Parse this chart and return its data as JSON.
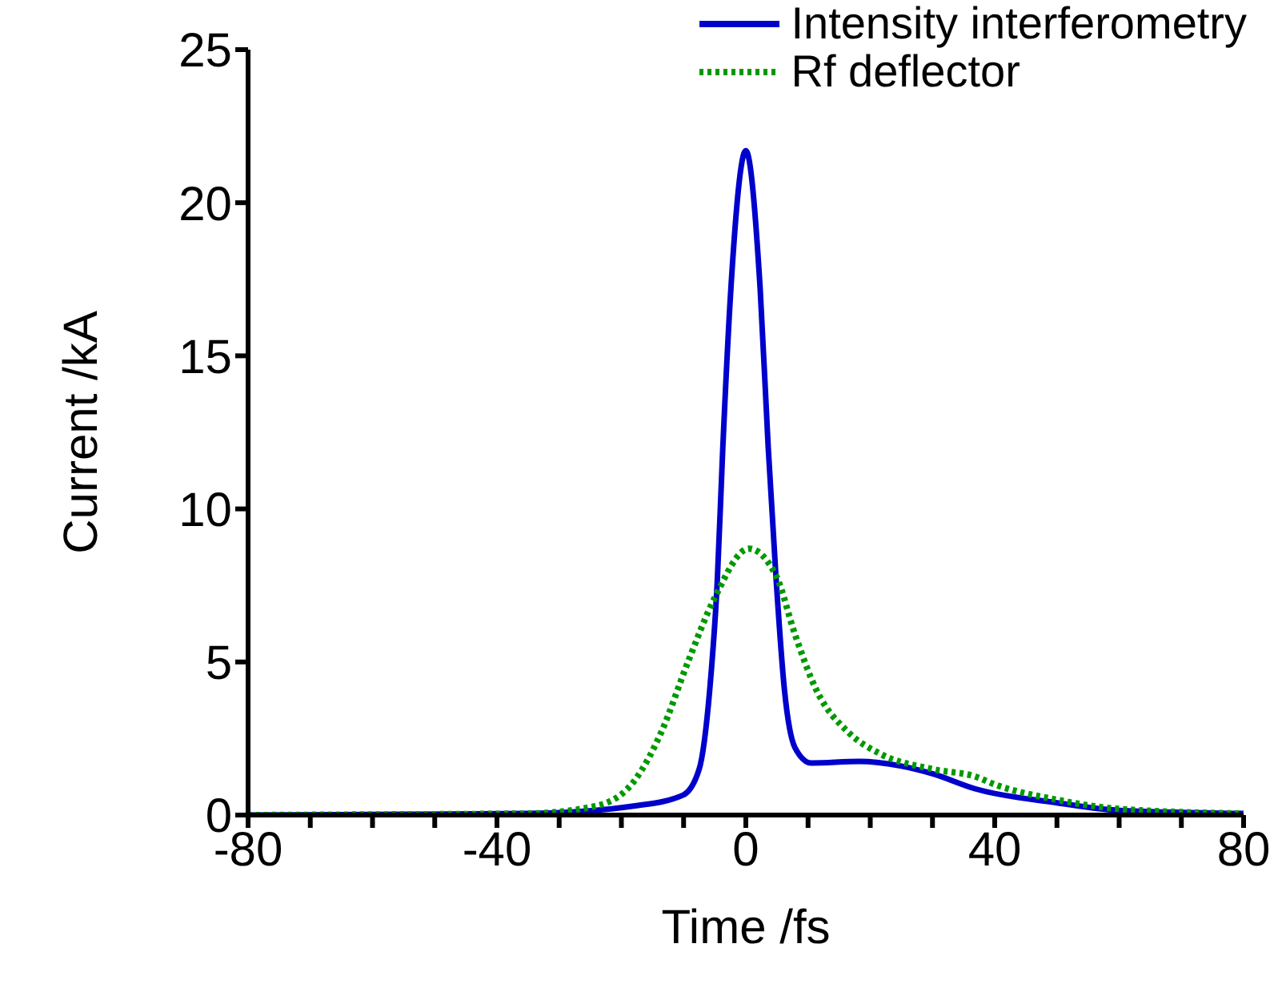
{
  "chart_data": {
    "type": "line",
    "xlabel": "Time /fs",
    "ylabel": "Current /kA",
    "xlim": [
      -80,
      80
    ],
    "ylim": [
      0,
      25
    ],
    "xticks": [
      -80,
      {
        "value": -70,
        "label": null
      },
      {
        "value": -60,
        "label": null
      },
      {
        "value": -50,
        "label": null
      },
      -40,
      {
        "value": -30,
        "label": null
      },
      {
        "value": -20,
        "label": null
      },
      {
        "value": -10,
        "label": null
      },
      0,
      {
        "value": 10,
        "label": null
      },
      {
        "value": 20,
        "label": null
      },
      {
        "value": 30,
        "label": null
      },
      40,
      {
        "value": 50,
        "label": null
      },
      {
        "value": 60,
        "label": null
      },
      {
        "value": 70,
        "label": null
      },
      80
    ],
    "yticks": [
      0,
      5,
      10,
      15,
      20,
      25
    ],
    "legend": "top right",
    "series": [
      {
        "name": "Intensity interferometry",
        "color": "#0000cc",
        "line_style": "solid",
        "x": [
          -80,
          -60,
          -35,
          -17.8,
          -10.1,
          -7.5,
          -5.8,
          -4.6,
          -3.7,
          -2.4,
          0,
          2.3,
          3.6,
          4.9,
          6.2,
          7.9,
          10.5,
          18.2,
          25,
          30,
          37,
          50,
          60,
          80
        ],
        "values": [
          0,
          0.02,
          0.05,
          0.3,
          0.65,
          1.5,
          4.1,
          7.6,
          12,
          17.2,
          21.7,
          17.2,
          12,
          7.6,
          4.1,
          2.2,
          1.7,
          1.75,
          1.6,
          1.35,
          0.85,
          0.4,
          0.15,
          0.05
        ]
      },
      {
        "name": "Rf deflector",
        "color": "#009900",
        "line_style": "dotted",
        "x": [
          -80,
          -60,
          -35,
          -24,
          -17.8,
          -13.6,
          -9.3,
          -5,
          0.5,
          4.9,
          7.9,
          11.3,
          16.5,
          21.6,
          30,
          37,
          40,
          50,
          60,
          80
        ],
        "values": [
          0,
          0.02,
          0.05,
          0.3,
          1.15,
          2.7,
          5,
          7.1,
          8.7,
          7.8,
          5.9,
          4.1,
          2.7,
          2,
          1.5,
          1.25,
          1,
          0.5,
          0.2,
          0.05
        ]
      }
    ]
  }
}
